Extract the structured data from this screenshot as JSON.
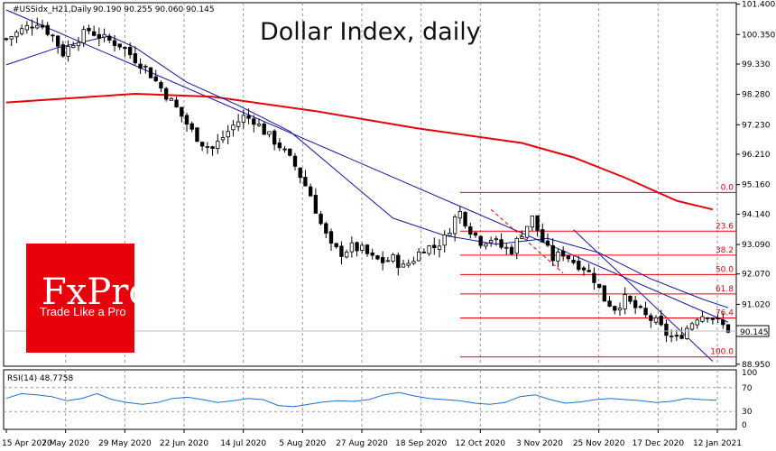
{
  "header": {
    "symbol": "#USSidx_H21,Daily",
    "ohlc": "90.190 90.255 90.060 90.145",
    "title": "Dollar Index, daily"
  },
  "brand": {
    "name": "FxPro",
    "tagline": "Trade Like a Pro",
    "color": "#e8000b"
  },
  "rsi": {
    "label": "RSI(14) 48.7758",
    "levels": [
      70,
      30
    ],
    "ticks": [
      "100",
      "70",
      "30",
      "0"
    ],
    "color": "#1e6fd0"
  },
  "colors": {
    "candles": "#000000",
    "ma200": "#e8000b",
    "ma50": "#1515a8",
    "fibo": "#e8000b",
    "channel": "#1515a8",
    "grid": "#9a9a9a"
  },
  "chart_data": {
    "type": "candlestick",
    "title": "Dollar Index, daily",
    "x_ticks": [
      "15 Apr 2020",
      "7 May 2020",
      "29 May 2020",
      "22 Jun 2020",
      "14 Jul 2020",
      "5 Aug 2020",
      "27 Aug 2020",
      "18 Sep 2020",
      "12 Oct 2020",
      "3 Nov 2020",
      "25 Nov 2020",
      "17 Dec 2020",
      "12 Jan 2021"
    ],
    "y_ticks": [
      "101.400",
      "100.350",
      "99.330",
      "98.280",
      "97.230",
      "96.210",
      "95.160",
      "94.140",
      "93.090",
      "92.070",
      "91.020",
      "90.145",
      "88.950"
    ],
    "ylim": [
      88.88,
      101.45
    ],
    "current_price": 90.145,
    "close_path": [
      [
        0,
        100.2
      ],
      [
        3,
        100.5
      ],
      [
        6,
        100.8
      ],
      [
        9,
        100.3
      ],
      [
        11,
        99.7
      ],
      [
        13,
        100.1
      ],
      [
        16,
        100.5
      ],
      [
        19,
        100.2
      ],
      [
        22,
        100.0
      ],
      [
        25,
        99.5
      ],
      [
        27,
        99.2
      ],
      [
        30,
        98.5
      ],
      [
        33,
        97.8
      ],
      [
        36,
        97.0
      ],
      [
        38,
        96.6
      ],
      [
        40,
        96.4
      ],
      [
        42,
        96.8
      ],
      [
        44,
        97.2
      ],
      [
        46,
        97.5
      ],
      [
        48,
        97.4
      ],
      [
        50,
        97.0
      ],
      [
        53,
        96.5
      ],
      [
        56,
        95.8
      ],
      [
        59,
        94.8
      ],
      [
        61,
        93.8
      ],
      [
        63,
        93.0
      ],
      [
        65,
        92.8
      ],
      [
        67,
        93.0
      ],
      [
        69,
        92.9
      ],
      [
        71,
        92.6
      ],
      [
        73,
        92.5
      ],
      [
        75,
        92.6
      ],
      [
        77,
        92.3
      ],
      [
        79,
        92.6
      ],
      [
        81,
        93.0
      ],
      [
        83,
        93.0
      ],
      [
        85,
        93.3
      ],
      [
        87,
        94.0
      ],
      [
        88,
        94.2
      ],
      [
        90,
        93.6
      ],
      [
        92,
        93.2
      ],
      [
        94,
        93.3
      ],
      [
        96,
        93.0
      ],
      [
        98,
        92.9
      ],
      [
        100,
        93.5
      ],
      [
        102,
        94.0
      ],
      [
        104,
        93.2
      ],
      [
        106,
        92.6
      ],
      [
        108,
        92.8
      ],
      [
        110,
        92.5
      ],
      [
        112,
        92.3
      ],
      [
        114,
        91.9
      ],
      [
        116,
        91.2
      ],
      [
        118,
        90.9
      ],
      [
        120,
        91.2
      ],
      [
        122,
        90.9
      ],
      [
        124,
        90.6
      ],
      [
        126,
        90.4
      ],
      [
        128,
        90.0
      ],
      [
        130,
        89.8
      ],
      [
        132,
        90.2
      ],
      [
        134,
        90.6
      ],
      [
        136,
        90.7
      ],
      [
        138,
        90.4
      ],
      [
        140,
        90.145
      ]
    ],
    "ma200": [
      [
        0,
        98.0
      ],
      [
        25,
        98.3
      ],
      [
        40,
        98.2
      ],
      [
        60,
        97.7
      ],
      [
        80,
        97.1
      ],
      [
        100,
        96.6
      ],
      [
        110,
        96.1
      ],
      [
        120,
        95.4
      ],
      [
        130,
        94.6
      ],
      [
        137,
        94.3
      ]
    ],
    "ma50": [
      [
        0,
        99.3
      ],
      [
        10,
        99.9
      ],
      [
        20,
        100.3
      ],
      [
        25,
        99.9
      ],
      [
        35,
        98.7
      ],
      [
        45,
        97.9
      ],
      [
        55,
        97.0
      ],
      [
        65,
        95.5
      ],
      [
        75,
        94.0
      ],
      [
        85,
        93.4
      ],
      [
        95,
        93.1
      ],
      [
        105,
        93.3
      ],
      [
        115,
        92.8
      ],
      [
        125,
        91.9
      ],
      [
        135,
        91.2
      ],
      [
        140,
        90.9
      ]
    ],
    "fibonacci": [
      {
        "level": "0.0",
        "price": 94.89
      },
      {
        "level": "23.6",
        "price": 93.55
      },
      {
        "level": "38.2",
        "price": 92.72
      },
      {
        "level": "50.0",
        "price": 92.05
      },
      {
        "level": "61.8",
        "price": 91.38
      },
      {
        "level": "76.4",
        "price": 90.55
      },
      {
        "level": "100.0",
        "price": 89.2
      }
    ],
    "channel_upper": [
      [
        0,
        101.2
      ],
      [
        140,
        90.4
      ]
    ],
    "channel_lower": [
      [
        110,
        93.6
      ],
      [
        137,
        89.05
      ]
    ],
    "rsi_series": [
      52,
      60,
      58,
      55,
      48,
      52,
      60,
      50,
      45,
      42,
      45,
      52,
      54,
      50,
      45,
      48,
      52,
      50,
      40,
      38,
      42,
      46,
      48,
      47,
      50,
      58,
      62,
      56,
      52,
      50,
      48,
      44,
      42,
      45,
      55,
      58,
      50,
      44,
      46,
      50,
      52,
      50,
      48,
      45,
      47,
      52,
      50,
      48.78
    ],
    "rsi_ylim": [
      0,
      100
    ]
  }
}
